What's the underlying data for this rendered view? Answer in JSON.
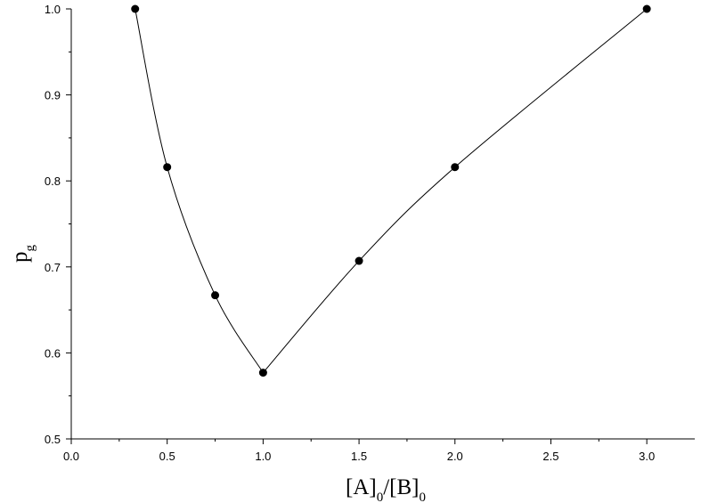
{
  "chart_data": {
    "type": "scatter",
    "title": "",
    "xlabel": {
      "parts": [
        {
          "t": "[A]",
          "sub": false
        },
        {
          "t": "0",
          "sub": true
        },
        {
          "t": "/[B]",
          "sub": false
        },
        {
          "t": "0",
          "sub": true
        }
      ]
    },
    "ylabel": {
      "parts": [
        {
          "t": "p",
          "sub": false
        },
        {
          "t": "g",
          "sub": true
        }
      ]
    },
    "xlim": [
      0.0,
      3.25
    ],
    "ylim": [
      0.5,
      1.0
    ],
    "xticks": [
      "0.0",
      "0.5",
      "1.0",
      "1.5",
      "2.0",
      "2.5",
      "3.0"
    ],
    "yticks": [
      "0.5",
      "0.6",
      "0.7",
      "0.8",
      "0.9",
      "1.0"
    ],
    "grid": false,
    "legend": "none",
    "series": [
      {
        "x": [
          0.333,
          0.5,
          0.75,
          1.0,
          1.5,
          2.0,
          3.0
        ],
        "y": [
          1.0,
          0.816,
          0.667,
          0.577,
          0.707,
          0.816,
          1.0
        ],
        "marker": "filled-circle",
        "line": "smooth",
        "color": "#000000"
      }
    ]
  }
}
